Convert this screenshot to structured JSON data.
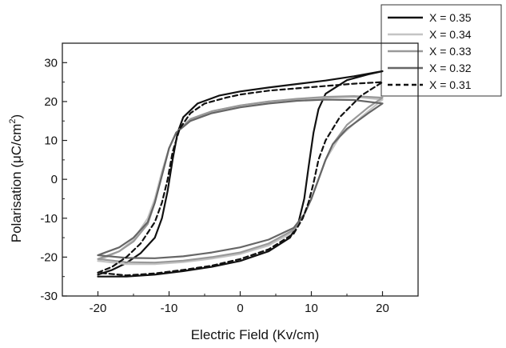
{
  "chart_data": {
    "type": "line",
    "xlabel": "Electric Field (Kv/cm)",
    "ylabel": {
      "main": "Polarisation (",
      "mu": "μ",
      "unit": "C/cm",
      "sup": "2",
      "close": ")"
    },
    "xlim": [
      -25,
      25
    ],
    "ylim": [
      -30,
      35
    ],
    "xticks": [
      -20,
      -10,
      0,
      10,
      20
    ],
    "yticks": [
      -30,
      -20,
      -10,
      0,
      10,
      20,
      30
    ],
    "grid": false,
    "legend_position": "top-right outside",
    "series": [
      {
        "name": "X = 0.35",
        "color": "#111111",
        "dash": "",
        "x": [
          -20,
          -18,
          -16,
          -14,
          -12,
          -11,
          -10.2,
          -9.5,
          -8.8,
          -8,
          -6,
          -3,
          0,
          4,
          8,
          12,
          16,
          20,
          18,
          15,
          12,
          11,
          10.3,
          9.6,
          9,
          8.2,
          7,
          4,
          0,
          -4,
          -8,
          -12,
          -16,
          -20
        ],
        "y": [
          -24.5,
          -23.3,
          -21.5,
          -19,
          -15,
          -10,
          -3,
          5,
          12,
          16,
          19.5,
          21.5,
          22.6,
          23.6,
          24.5,
          25.4,
          26.5,
          27.8,
          27,
          25.5,
          22,
          18,
          12,
          3,
          -5,
          -11,
          -15,
          -18.5,
          -21,
          -22.5,
          -23.6,
          -24.5,
          -25,
          -25
        ]
      },
      {
        "name": "X = 0.34",
        "color": "#c4c4c4",
        "dash": "",
        "x": [
          -20,
          -17,
          -15,
          -13,
          -12,
          -11,
          -10,
          -9,
          -7,
          -4,
          0,
          4,
          8,
          12,
          16,
          20,
          17,
          14,
          12,
          11,
          10,
          9,
          7,
          4,
          0,
          -4,
          -8,
          -12,
          -16,
          -20
        ],
        "y": [
          -21,
          -18.5,
          -15.5,
          -10,
          -5,
          2,
          8,
          12,
          15.5,
          17.5,
          19,
          20,
          20.6,
          21,
          21.2,
          20.5,
          16,
          11,
          5,
          0,
          -5,
          -9,
          -14,
          -17,
          -19.2,
          -20.4,
          -21.3,
          -21.8,
          -21.8,
          -21
        ]
      },
      {
        "name": "X = 0.33",
        "color": "#999999",
        "dash": "",
        "x": [
          -20,
          -17,
          -15,
          -13,
          -12,
          -11,
          -10,
          -9,
          -7,
          -4,
          0,
          4,
          8,
          12,
          16,
          20,
          18,
          15,
          13,
          12,
          11,
          10,
          9,
          7.5,
          4,
          0,
          -4,
          -8,
          -12,
          -16,
          -20
        ],
        "y": [
          -20.5,
          -18.5,
          -16,
          -11.5,
          -6,
          1,
          8,
          12,
          15.5,
          17.5,
          19,
          20,
          20.7,
          21.2,
          21.4,
          21,
          18.5,
          14,
          9,
          5,
          0,
          -5,
          -9,
          -13,
          -16.5,
          -18.8,
          -20,
          -20.9,
          -21.4,
          -21.3,
          -20.5
        ]
      },
      {
        "name": "X = 0.32",
        "color": "#666666",
        "dash": "",
        "x": [
          -20,
          -17,
          -15,
          -13,
          -12,
          -11,
          -10,
          -9,
          -7,
          -4,
          0,
          4,
          8,
          12,
          16,
          20,
          18,
          15,
          13,
          12,
          11,
          10,
          9,
          7.5,
          4,
          0,
          -4,
          -8,
          -12,
          -16,
          -20
        ],
        "y": [
          -19.5,
          -17.5,
          -15,
          -11,
          -6,
          1,
          8,
          12,
          15,
          17,
          18.5,
          19.5,
          20.2,
          20.5,
          20.4,
          19.5,
          17,
          13,
          9,
          5,
          0,
          -5,
          -9,
          -12.5,
          -15.5,
          -17.5,
          -18.8,
          -19.8,
          -20.3,
          -20.2,
          -19.5
        ]
      },
      {
        "name": "X = 0.31",
        "color": "#111111",
        "dash": "6,4",
        "x": [
          -20,
          -18,
          -16,
          -14,
          -12,
          -11,
          -10.2,
          -9.5,
          -8.5,
          -7,
          -5,
          -2,
          0,
          4,
          8,
          12,
          16,
          20,
          17,
          14,
          12,
          11,
          10.3,
          9.6,
          8.8,
          7.5,
          4,
          0,
          -4,
          -8,
          -12,
          -16,
          -20
        ],
        "y": [
          -24,
          -22.5,
          -20,
          -16.5,
          -11,
          -6,
          0,
          7,
          13,
          17,
          19.5,
          21,
          21.8,
          22.8,
          23.4,
          24,
          24.6,
          25,
          21.5,
          16,
          10,
          5,
          -1,
          -6,
          -10,
          -14,
          -18,
          -20.5,
          -22.2,
          -23.3,
          -24.2,
          -24.7,
          -24
        ]
      }
    ]
  }
}
